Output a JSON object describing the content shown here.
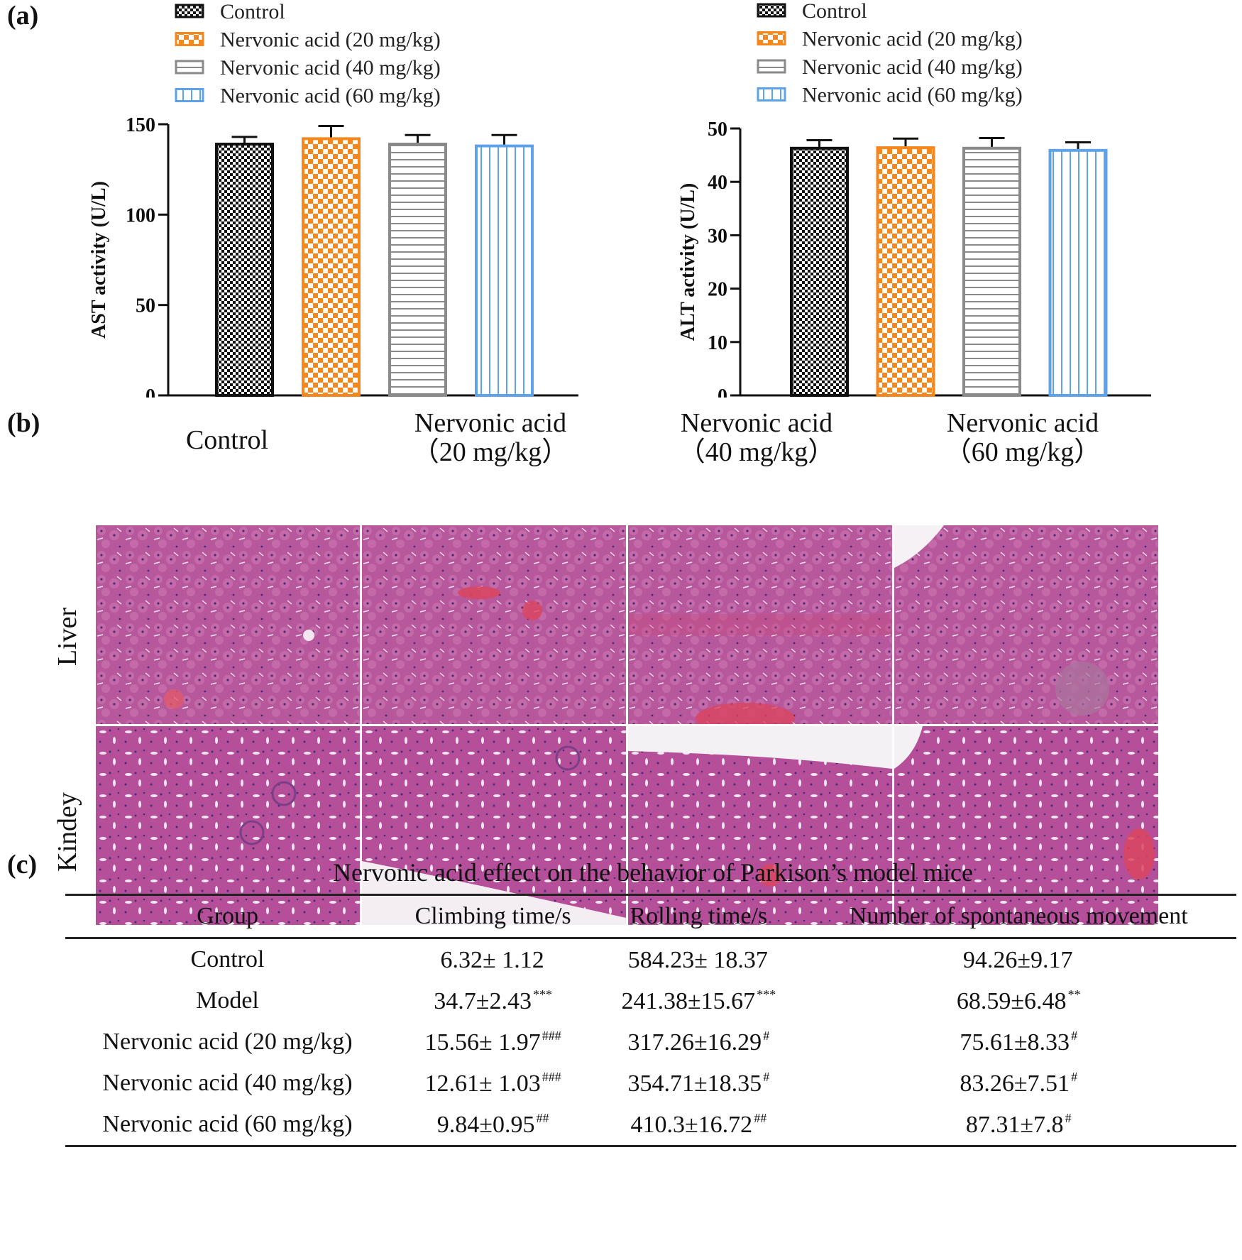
{
  "panels": {
    "a": "(a)",
    "b": "(b)",
    "c": "(c)"
  },
  "colors": {
    "control": "#111111",
    "na20": "#f5871f",
    "na40": "#8a8a8a",
    "na60": "#5ea3ea",
    "axis": "#111111"
  },
  "legend": {
    "items": [
      {
        "label": "Control",
        "pattern": "checker-fine"
      },
      {
        "label": "Nervonic acid (20 mg/kg)",
        "pattern": "checker-large"
      },
      {
        "label": "Nervonic acid (40 mg/kg)",
        "pattern": "horizontal-lines"
      },
      {
        "label": "Nervonic acid (60 mg/kg)",
        "pattern": "vertical-lines"
      }
    ]
  },
  "chart_data": [
    {
      "type": "bar",
      "title": "",
      "ylabel": "AST activity (U/L)",
      "xlabel": "",
      "ylim": [
        0,
        150
      ],
      "yticks": [
        0,
        50,
        100,
        150
      ],
      "categories": [
        "Control",
        "Nervonic acid (20 mg/kg)",
        "Nervonic acid (40 mg/kg)",
        "Nervonic acid (60 mg/kg)"
      ],
      "values": [
        139,
        142,
        139,
        138
      ],
      "errors": [
        4,
        7,
        5,
        6
      ],
      "legend_position": "top"
    },
    {
      "type": "bar",
      "title": "",
      "ylabel": "ALT activity (U/L)",
      "xlabel": "",
      "ylim": [
        0,
        50
      ],
      "yticks": [
        0,
        10,
        20,
        30,
        40,
        50
      ],
      "categories": [
        "Control",
        "Nervonic acid (20 mg/kg)",
        "Nervonic acid (40 mg/kg)",
        "Nervonic acid (60 mg/kg)"
      ],
      "values": [
        46.3,
        46.4,
        46.3,
        45.9
      ],
      "errors": [
        1.5,
        1.7,
        1.9,
        1.5
      ],
      "legend_position": "top"
    }
  ],
  "histology": {
    "columns": [
      {
        "line1": "Control",
        "line2": ""
      },
      {
        "line1": "Nervonic acid",
        "line2": "（20 mg/kg）"
      },
      {
        "line1": "Nervonic acid",
        "line2": "（40 mg/kg）"
      },
      {
        "line1": "Nervonic acid",
        "line2": "（60 mg/kg）"
      }
    ],
    "rows": [
      "Liver",
      "Kindey"
    ]
  },
  "behavior_table": {
    "title": "Nervonic acid effect on the behavior of Parkison’s model mice",
    "headers": [
      "Group",
      "Climbing time/s",
      "Rolling time/s",
      "Number of spontaneous movement"
    ],
    "rows": [
      {
        "group": "Control",
        "climb": "6.32± 1.12",
        "climb_sig": "",
        "roll": "584.23± 18.37",
        "roll_sig": "",
        "move": "94.26±9.17",
        "move_sig": ""
      },
      {
        "group": "Model",
        "climb": "34.7±2.43",
        "climb_sig": "***",
        "roll": "241.38±15.67",
        "roll_sig": "***",
        "move": "68.59±6.48",
        "move_sig": "**"
      },
      {
        "group": "Nervonic acid (20 mg/kg)",
        "climb": "15.56± 1.97",
        "climb_sig": "###",
        "roll": "317.26±16.29",
        "roll_sig": "#",
        "move": "75.61±8.33",
        "move_sig": "#"
      },
      {
        "group": "Nervonic acid (40 mg/kg)",
        "climb": "12.61± 1.03",
        "climb_sig": "###",
        "roll": "354.71±18.35",
        "roll_sig": "#",
        "move": "83.26±7.51",
        "move_sig": "#"
      },
      {
        "group": "Nervonic acid (60 mg/kg)",
        "climb": "9.84±0.95",
        "climb_sig": "##",
        "roll": "410.3±16.72",
        "roll_sig": "##",
        "move": "87.31±7.8",
        "move_sig": "#"
      }
    ]
  }
}
